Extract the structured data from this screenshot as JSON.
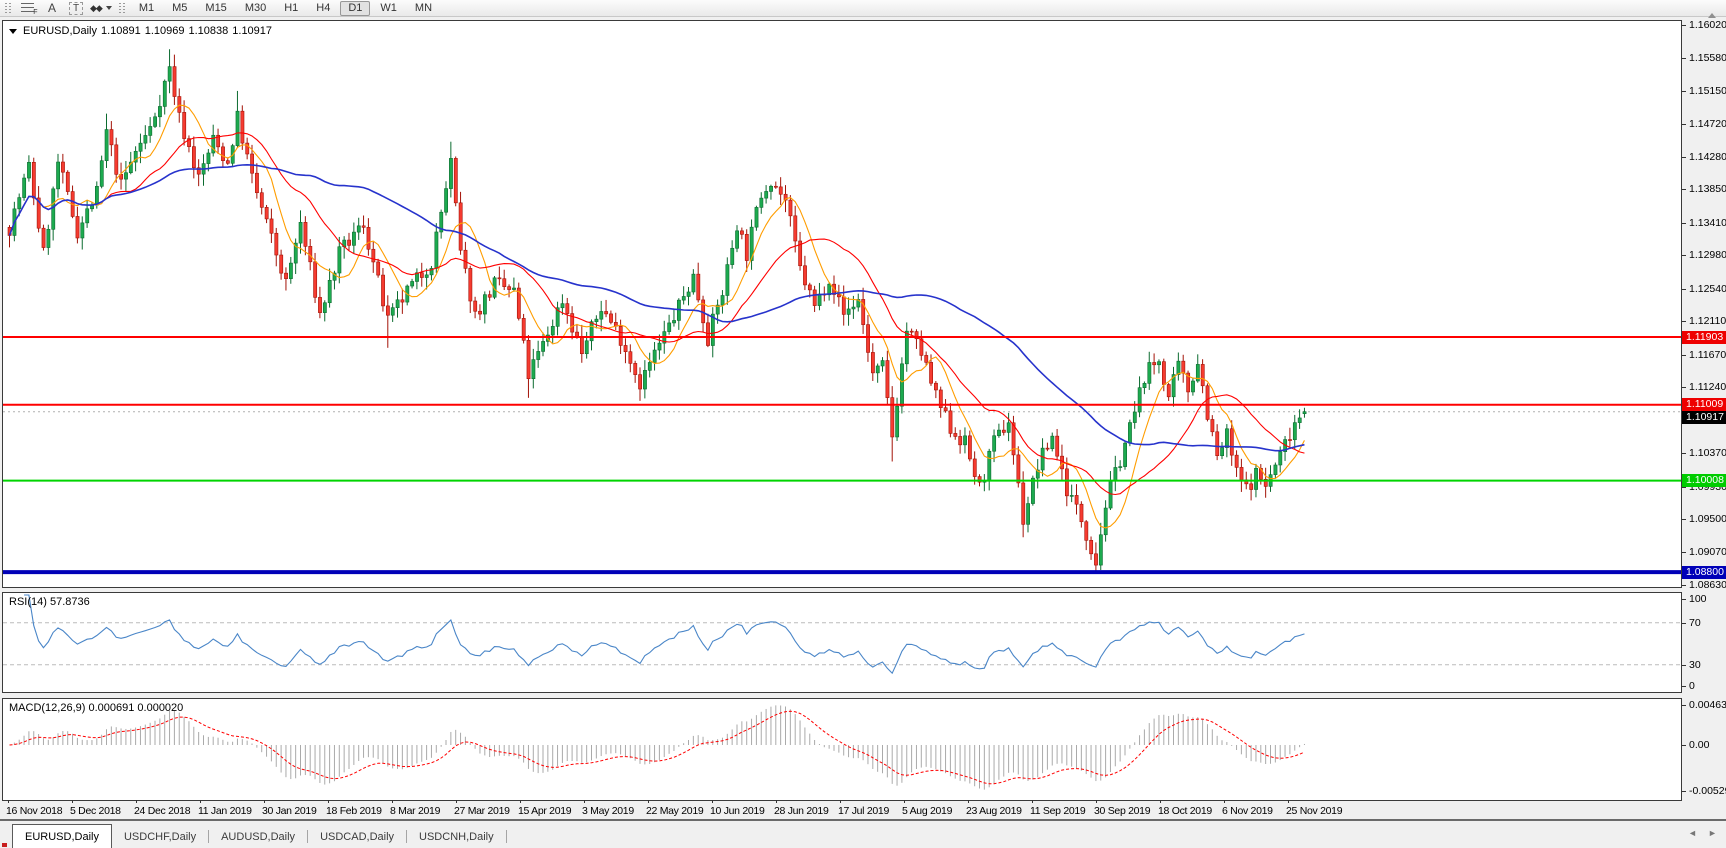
{
  "toolbar": {
    "tools": [
      {
        "name": "fibonacci-retracement",
        "glyph": "F"
      },
      {
        "name": "text-label",
        "glyph": "A"
      },
      {
        "name": "text-box",
        "glyph": "T"
      },
      {
        "name": "arrow-objects",
        "glyph": "◆◆"
      }
    ],
    "timeframes": [
      "M1",
      "M5",
      "M15",
      "M30",
      "H1",
      "H4",
      "D1",
      "W1",
      "MN"
    ],
    "active_timeframe": "D1"
  },
  "chart": {
    "title": {
      "symbol": "EURUSD,Daily",
      "open": "1.10891",
      "high": "1.10969",
      "low": "1.10838",
      "close": "1.10917"
    }
  },
  "indicators": {
    "rsi_label": "RSI(14) 57.8736",
    "macd_label": "MACD(12,26,9) 0.000691 0.000020"
  },
  "tabs": {
    "items": [
      "EURUSD,Daily",
      "USDCHF,Daily",
      "AUDUSD,Daily",
      "USDCAD,Daily",
      "USDCNH,Daily"
    ],
    "active_index": 0,
    "scroll_left_glyph": "◄",
    "scroll_right_glyph": "►"
  },
  "chart_data": {
    "type": "candlestick",
    "symbol": "EURUSD",
    "timeframe": "Daily",
    "last_bar": {
      "open": 1.10891,
      "high": 1.10969,
      "low": 1.10838,
      "close": 1.10917
    },
    "price_axis_range": {
      "top": 1.1602,
      "bottom": 1.0863
    },
    "price_axis_ticks": [
      "1.16020",
      "1.15580",
      "1.15150",
      "1.14720",
      "1.14280",
      "1.13850",
      "1.13410",
      "1.12980",
      "1.12540",
      "1.12110",
      "1.11670",
      "1.11240",
      "1.10800",
      "1.10370",
      "1.09930",
      "1.09500",
      "1.09070",
      "1.08630"
    ],
    "time_labels": [
      "16 Nov 2018",
      "5 Dec 2018",
      "24 Dec 2018",
      "11 Jan 2019",
      "30 Jan 2019",
      "18 Feb 2019",
      "8 Mar 2019",
      "27 Mar 2019",
      "15 Apr 2019",
      "3 May 2019",
      "22 May 2019",
      "10 Jun 2019",
      "28 Jun 2019",
      "17 Jul 2019",
      "5 Aug 2019",
      "23 Aug 2019",
      "11 Sep 2019",
      "30 Sep 2019",
      "18 Oct 2019",
      "6 Nov 2019",
      "25 Nov 2019"
    ],
    "bars_count": 268,
    "price_waypoints": [
      [
        0,
        1.1335
      ],
      [
        4,
        1.1415
      ],
      [
        7,
        1.13
      ],
      [
        10,
        1.142
      ],
      [
        14,
        1.133
      ],
      [
        18,
        1.138
      ],
      [
        20,
        1.146
      ],
      [
        23,
        1.139
      ],
      [
        26,
        1.1435
      ],
      [
        29,
        1.1465
      ],
      [
        33,
        1.1545
      ],
      [
        35,
        1.148
      ],
      [
        39,
        1.14
      ],
      [
        42,
        1.145
      ],
      [
        45,
        1.142
      ],
      [
        47,
        1.148
      ],
      [
        50,
        1.14
      ],
      [
        54,
        1.132
      ],
      [
        57,
        1.126
      ],
      [
        60,
        1.134
      ],
      [
        64,
        1.122
      ],
      [
        68,
        1.13
      ],
      [
        73,
        1.134
      ],
      [
        78,
        1.121
      ],
      [
        82,
        1.125
      ],
      [
        87,
        1.129
      ],
      [
        91,
        1.142
      ],
      [
        93,
        1.13
      ],
      [
        96,
        1.122
      ],
      [
        100,
        1.126
      ],
      [
        104,
        1.125
      ],
      [
        107,
        1.114
      ],
      [
        110,
        1.118
      ],
      [
        114,
        1.124
      ],
      [
        118,
        1.117
      ],
      [
        122,
        1.123
      ],
      [
        126,
        1.119
      ],
      [
        130,
        1.113
      ],
      [
        134,
        1.118
      ],
      [
        138,
        1.123
      ],
      [
        141,
        1.127
      ],
      [
        144,
        1.119
      ],
      [
        147,
        1.125
      ],
      [
        150,
        1.134
      ],
      [
        152,
        1.13
      ],
      [
        155,
        1.138
      ],
      [
        157,
        1.14
      ],
      [
        160,
        1.137
      ],
      [
        163,
        1.128
      ],
      [
        166,
        1.123
      ],
      [
        169,
        1.127
      ],
      [
        172,
        1.122
      ],
      [
        175,
        1.124
      ],
      [
        178,
        1.114
      ],
      [
        180,
        1.115
      ],
      [
        182,
        1.106
      ],
      [
        185,
        1.12
      ],
      [
        188,
        1.117
      ],
      [
        191,
        1.111
      ],
      [
        194,
        1.107
      ],
      [
        197,
        1.105
      ],
      [
        200,
        1.099
      ],
      [
        203,
        1.105
      ],
      [
        206,
        1.108
      ],
      [
        209,
        1.095
      ],
      [
        212,
        1.102
      ],
      [
        215,
        1.106
      ],
      [
        218,
        1.099
      ],
      [
        221,
        1.095
      ],
      [
        224,
        1.0895
      ],
      [
        226,
        1.097
      ],
      [
        229,
        1.103
      ],
      [
        232,
        1.109
      ],
      [
        234,
        1.114
      ],
      [
        237,
        1.116
      ],
      [
        239,
        1.111
      ],
      [
        241,
        1.115
      ],
      [
        243,
        1.112
      ],
      [
        245,
        1.116
      ],
      [
        247,
        1.109
      ],
      [
        249,
        1.103
      ],
      [
        251,
        1.106
      ],
      [
        253,
        1.101
      ],
      [
        255,
        1.099
      ],
      [
        257,
        1.101
      ],
      [
        259,
        1.0995
      ],
      [
        261,
        1.102
      ],
      [
        263,
        1.105
      ],
      [
        265,
        1.108
      ],
      [
        267,
        1.10917
      ]
    ],
    "wick_overrides": {
      "20": {
        "high": 1.1485
      },
      "33": {
        "high": 1.157
      },
      "47": {
        "high": 1.1515
      },
      "91": {
        "high": 1.1448
      },
      "78": {
        "low": 1.1176
      },
      "107": {
        "low": 1.111
      },
      "130": {
        "low": 1.1106
      },
      "182": {
        "low": 1.1026
      },
      "209": {
        "low": 1.0926
      },
      "224": {
        "low": 1.0879
      }
    },
    "horizontal_lines": [
      {
        "label": "1.11903",
        "price": 1.11903,
        "color": "#ff0000",
        "thickness": 2
      },
      {
        "label": "1.11009",
        "price": 1.11009,
        "color": "#ff0000",
        "thickness": 2
      },
      {
        "label": "1.10008",
        "price": 1.10008,
        "color": "#00d400",
        "thickness": 2
      },
      {
        "label": "1.08800",
        "price": 1.088,
        "color": "#0000b8",
        "thickness": 4
      }
    ],
    "current_price": {
      "label": "1.10917",
      "price": 1.10917
    },
    "moving_averages": [
      {
        "period": 8,
        "color": "#ff9d00"
      },
      {
        "period": 21,
        "color": "#ff0000"
      },
      {
        "period": 55,
        "color": "#2733cc"
      }
    ],
    "candle_colors": {
      "up_fill": "#1daa4f",
      "up_stroke": "#0b6b2f",
      "down_fill": "#f53b30",
      "down_stroke": "#a31207"
    },
    "rsi": {
      "period": 14,
      "current": 57.8736,
      "color": "#4a86c8",
      "levels": [
        70,
        30
      ],
      "axis_ticks": [
        "100",
        "70",
        "30",
        "0"
      ]
    },
    "macd": {
      "fast": 12,
      "slow": 26,
      "signal_period": 9,
      "current": 0.000691,
      "current_signal": 2e-05,
      "histogram_color": "#aaaaaa",
      "signal_color": "#ff0000",
      "axis_ticks": [
        "0.00463",
        "0.00",
        "-0.005295"
      ]
    }
  }
}
